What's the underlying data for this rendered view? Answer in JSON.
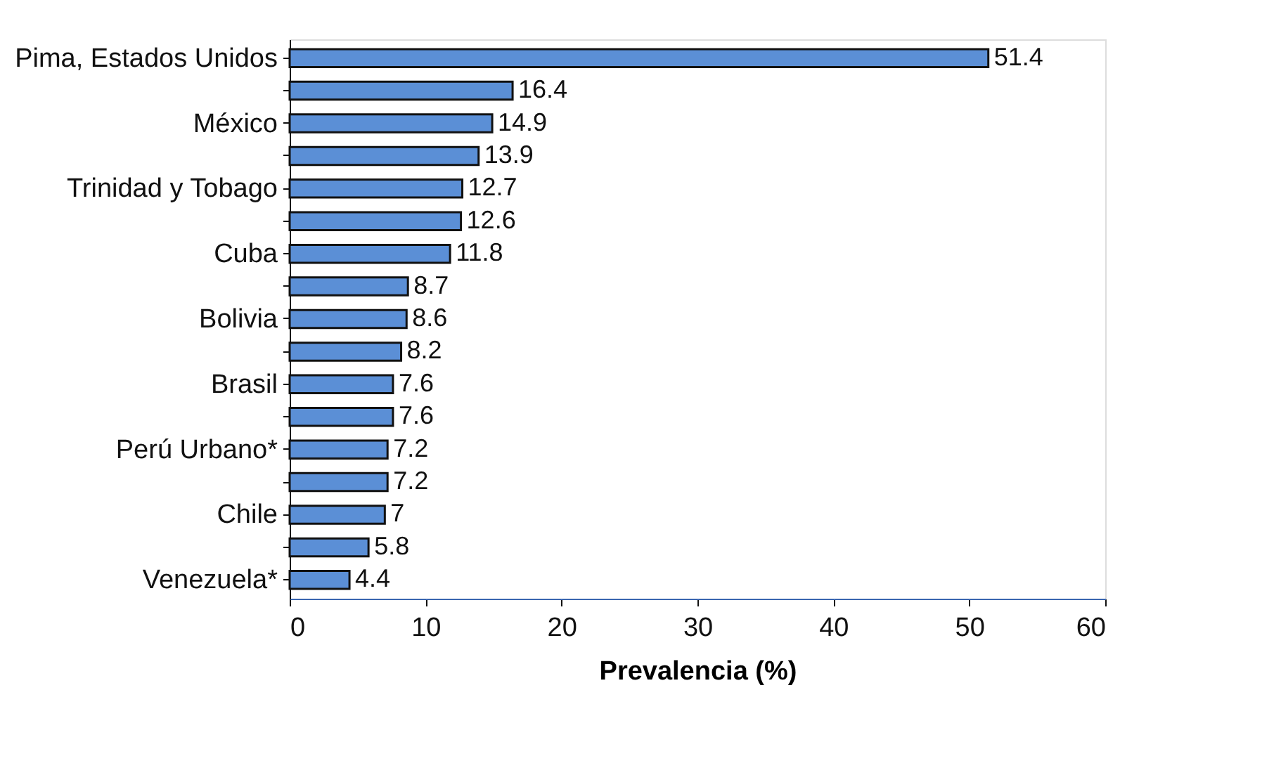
{
  "chart_data": {
    "type": "bar",
    "orientation": "horizontal",
    "xlabel": "Prevalencia (%)",
    "categories": [
      "Pima, Estados Unidos",
      null,
      "México",
      null,
      "Trinidad y Tobago",
      null,
      "Cuba",
      null,
      "Bolivia",
      null,
      "Brasil",
      null,
      "Perú Urbano*",
      null,
      "Chile",
      null,
      "Venezuela*"
    ],
    "values": [
      51.4,
      16.4,
      14.9,
      13.9,
      12.7,
      12.6,
      11.8,
      8.7,
      8.6,
      8.2,
      7.6,
      7.6,
      7.2,
      7.2,
      7,
      5.8,
      4.4
    ],
    "color": "#5b8fd6",
    "xlim": [
      0,
      60
    ],
    "xticks": [
      0,
      10,
      20,
      30,
      40,
      50,
      60
    ],
    "grid": false,
    "data_labels": true
  }
}
